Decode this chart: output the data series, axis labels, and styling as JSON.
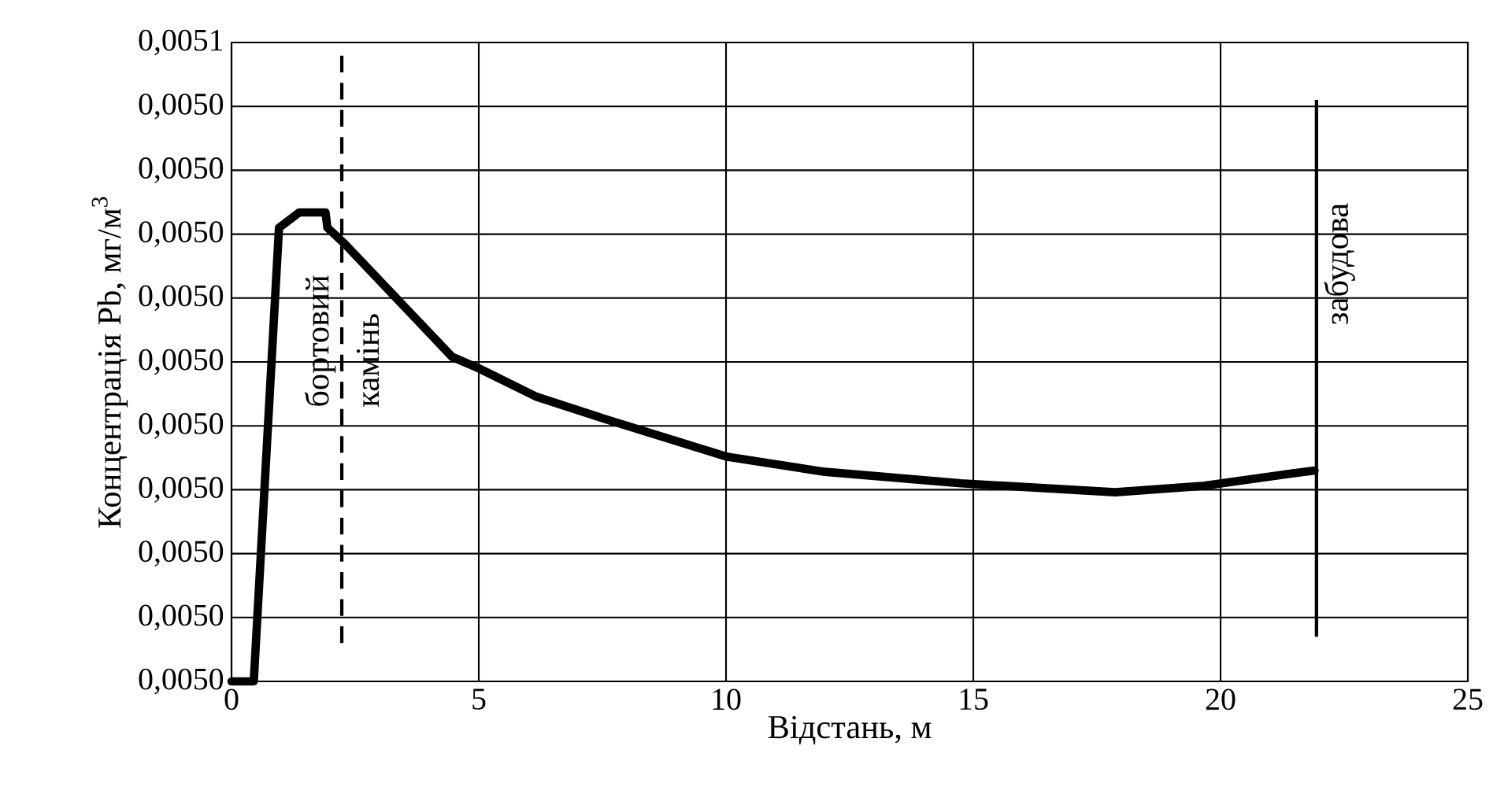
{
  "chart_data": {
    "type": "line",
    "xlabel": "Відстань, м",
    "ylabel": "Концентрація Pb, мг/м$^{3}$",
    "x": [
      0,
      0.45,
      0.96,
      1.37,
      1.9,
      1.94,
      2.3,
      4.46,
      5.0,
      6.15,
      7.5,
      10,
      12,
      14.75,
      17.87,
      19.65,
      21.5,
      21.9
    ],
    "series": [
      {
        "color": "#000000",
        "values": [
          0.005,
          0.005,
          0.0050355,
          0.0050367,
          0.0050367,
          0.0050355,
          0.0050342,
          0.0050254,
          0.0050245,
          0.0050223,
          0.0050206,
          0.0050176,
          0.0050164,
          0.0050155,
          0.0050148,
          0.0050153,
          0.0050163,
          0.0050165
        ]
      }
    ],
    "xlim": [
      0,
      25
    ],
    "xticks": [
      0,
      5,
      10,
      15,
      20,
      25
    ],
    "ylim": [
      0.005,
      0.00505
    ],
    "yticks": [
      {
        "value": 0.005,
        "label": "0,0050"
      },
      {
        "value": 0.005005,
        "label": "0,0050"
      },
      {
        "value": 0.00501,
        "label": "0,0050"
      },
      {
        "value": 0.005015,
        "label": "0,0050"
      },
      {
        "value": 0.00502,
        "label": "0,0050"
      },
      {
        "value": 0.005025,
        "label": "0,0050"
      },
      {
        "value": 0.00503,
        "label": "0,0050"
      },
      {
        "value": 0.005035,
        "label": "0,0050"
      },
      {
        "value": 0.00504,
        "label": "0,0050"
      },
      {
        "value": 0.005045,
        "label": "0,0050"
      },
      {
        "value": 0.00505,
        "label": "0,0051"
      }
    ],
    "ref_lines": [
      {
        "axis": "x",
        "value": 2.23,
        "label": "бортовий камінь",
        "line_style": "dashed",
        "color": "#000000"
      },
      {
        "axis": "x",
        "value": 21.94,
        "label": "забудова",
        "line_style": "solid",
        "color": "#000000"
      }
    ],
    "grid": true,
    "marker": "none",
    "line_style": "solid"
  }
}
